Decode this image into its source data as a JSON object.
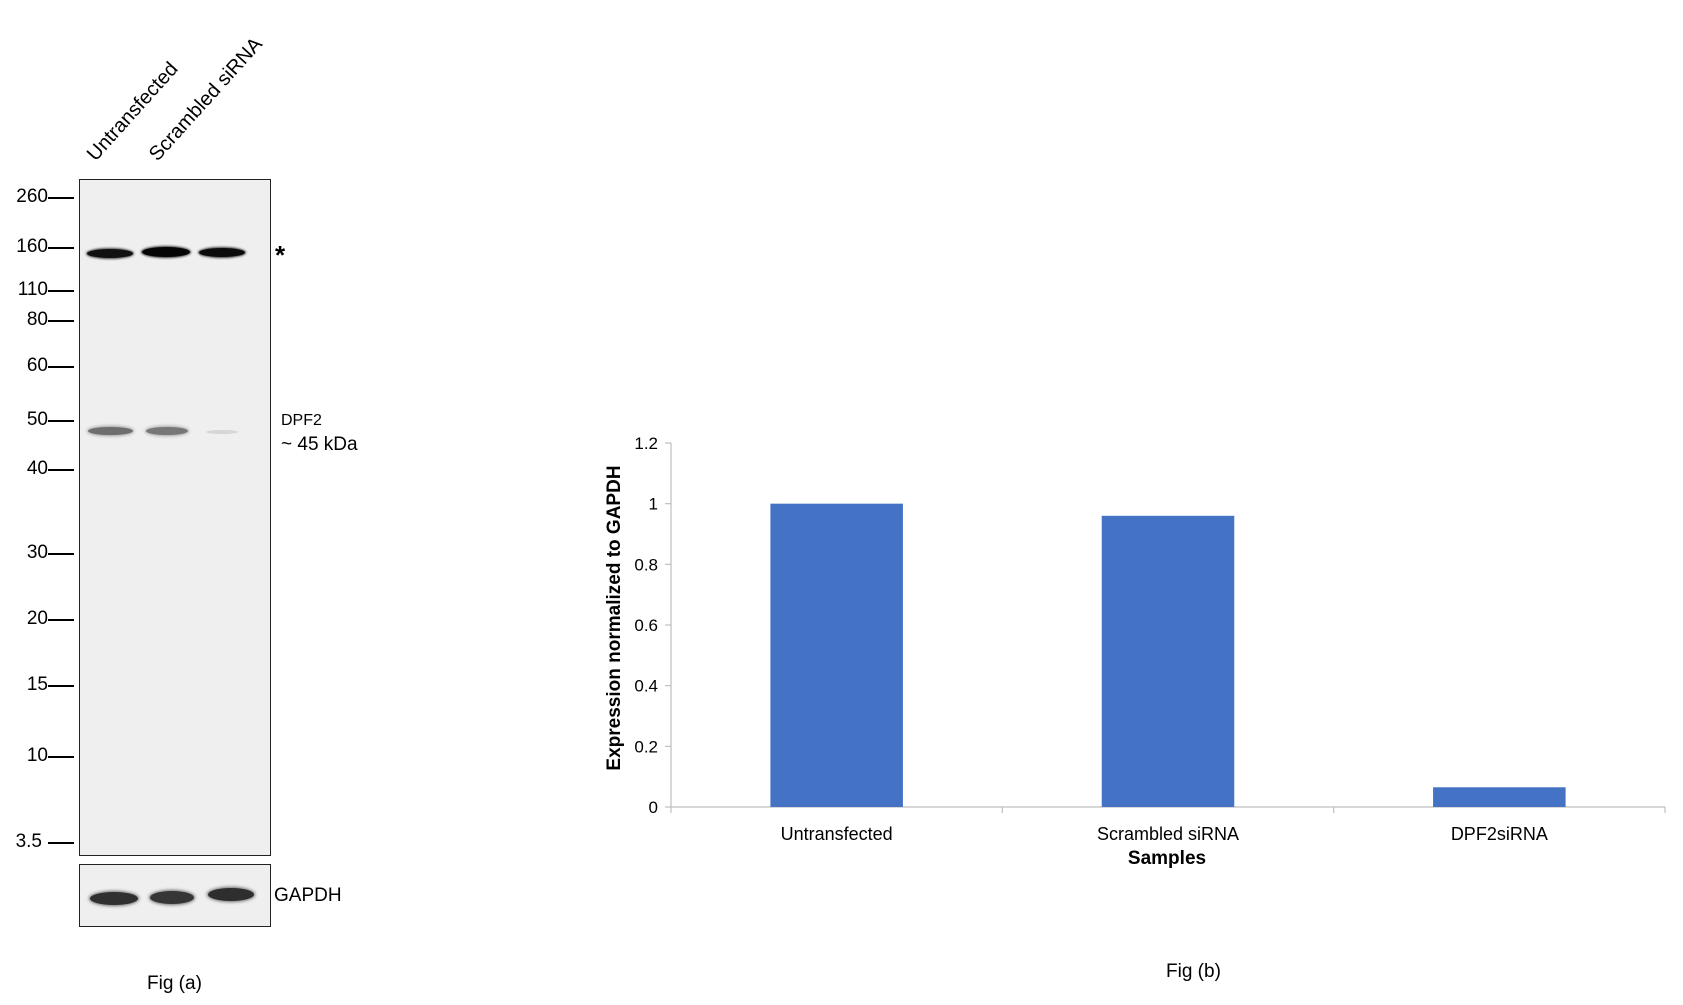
{
  "figure_a": {
    "caption": "Fig (a)",
    "lanes": [
      "Untransfected",
      "Scrambled siRNA"
    ],
    "mw_markers": [
      "260",
      "160",
      "110",
      "80",
      "60",
      "50",
      "40",
      "30",
      "20",
      "15",
      "10",
      "3.5"
    ],
    "asterisk": "*",
    "target_name": "DPF2",
    "target_size": "~ 45 kDa",
    "loading_control": "GAPDH"
  },
  "chart_data": {
    "type": "bar",
    "categories": [
      "Untransfected",
      "Scrambled siRNA",
      "DPF2siRNA"
    ],
    "values": [
      1.0,
      0.96,
      0.065
    ],
    "xlabel": "Samples",
    "ylabel": "Expression  normalized to GAPDH",
    "ylim": [
      0,
      1.2
    ],
    "yticks": [
      "0",
      "0.2",
      "0.4",
      "0.6",
      "0.8",
      "1",
      "1.2"
    ],
    "bar_color": "#4472C4",
    "grid": false,
    "caption": "Fig (b)"
  }
}
